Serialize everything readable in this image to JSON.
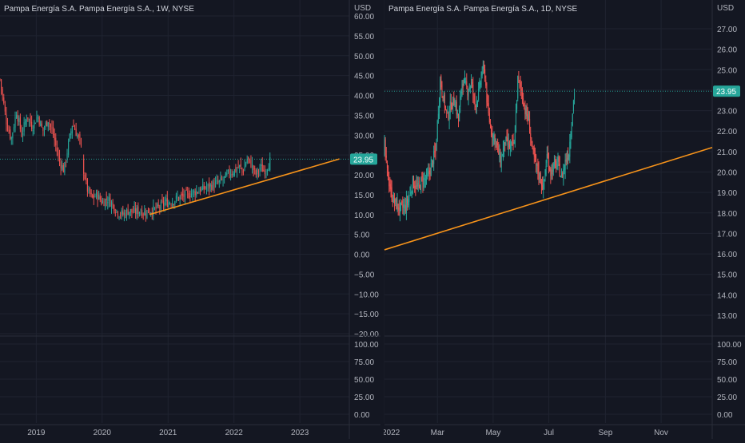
{
  "colors": {
    "background": "#141722",
    "grid": "#1f2330",
    "separator": "#2a2e39",
    "axis_text": "#b2b5be",
    "up": "#26a69a",
    "down": "#ef5350",
    "trendline": "#f7931a",
    "price_badge": "#26a69a",
    "price_badge_text": "#ffffff"
  },
  "chart_data": [
    {
      "type": "candlestick",
      "title": "Pampa Energía S.A. Pampa Energía S.A., 1W, NYSE",
      "currency": "USD",
      "last_price": "23.95",
      "y_ticks": [
        "60.00",
        "55.00",
        "50.00",
        "45.00",
        "40.00",
        "35.00",
        "30.00",
        "25.00",
        "20.00",
        "15.00",
        "10.00",
        "5.00",
        "0.00",
        "−5.00",
        "−10.00",
        "−15.00",
        "−20.00"
      ],
      "ylim": [
        -20,
        60
      ],
      "x_ticks": [
        {
          "label": "2019",
          "t": 2019.0
        },
        {
          "label": "2020",
          "t": 2020.0
        },
        {
          "label": "2021",
          "t": 2021.0
        },
        {
          "label": "2022",
          "t": 2022.0
        },
        {
          "label": "2023",
          "t": 2023.0
        }
      ],
      "x_range": [
        2018.45,
        2023.75
      ],
      "price_path": [
        [
          2018.45,
          44
        ],
        [
          2018.55,
          33
        ],
        [
          2018.62,
          29
        ],
        [
          2018.7,
          36
        ],
        [
          2018.78,
          30
        ],
        [
          2018.86,
          35
        ],
        [
          2018.94,
          32
        ],
        [
          2019.02,
          35
        ],
        [
          2019.1,
          31
        ],
        [
          2019.18,
          34
        ],
        [
          2019.26,
          30
        ],
        [
          2019.34,
          24
        ],
        [
          2019.42,
          21
        ],
        [
          2019.48,
          27
        ],
        [
          2019.55,
          33
        ],
        [
          2019.62,
          30
        ],
        [
          2019.67,
          28
        ],
        [
          2019.72,
          21
        ],
        [
          2019.78,
          16
        ],
        [
          2019.85,
          14
        ],
        [
          2019.92,
          15
        ],
        [
          2020.0,
          13
        ],
        [
          2020.08,
          14
        ],
        [
          2020.16,
          12.5
        ],
        [
          2020.24,
          10.5
        ],
        [
          2020.32,
          10
        ],
        [
          2020.4,
          11
        ],
        [
          2020.48,
          10.5
        ],
        [
          2020.56,
          11
        ],
        [
          2020.64,
          10.5
        ],
        [
          2020.72,
          11
        ],
        [
          2020.8,
          11.2
        ],
        [
          2020.88,
          12
        ],
        [
          2020.96,
          13
        ],
        [
          2021.05,
          13.2
        ],
        [
          2021.13,
          14
        ],
        [
          2021.21,
          14.5
        ],
        [
          2021.29,
          15
        ],
        [
          2021.37,
          15.5
        ],
        [
          2021.45,
          16
        ],
        [
          2021.53,
          16.5
        ],
        [
          2021.61,
          17
        ],
        [
          2021.69,
          17.5
        ],
        [
          2021.77,
          18
        ],
        [
          2021.85,
          19
        ],
        [
          2021.93,
          20.5
        ],
        [
          2022.0,
          21
        ],
        [
          2022.08,
          22
        ],
        [
          2022.14,
          21
        ],
        [
          2022.2,
          24
        ],
        [
          2022.27,
          22.5
        ],
        [
          2022.33,
          20
        ],
        [
          2022.4,
          22
        ],
        [
          2022.45,
          21
        ],
        [
          2022.5,
          22
        ],
        [
          2022.56,
          23.95
        ]
      ],
      "trendline": {
        "from": [
          2020.72,
          10
        ],
        "to": [
          2023.6,
          24
        ]
      }
    },
    {
      "type": "candlestick",
      "title": "Pampa Energía S.A. Pampa Energía S.A., 1D, NYSE",
      "currency": "USD",
      "last_price": "23.95",
      "y_ticks": [
        "27.00",
        "26.00",
        "25.00",
        "24.00",
        "23.00",
        "22.00",
        "21.00",
        "20.00",
        "19.00",
        "18.00",
        "17.00",
        "16.00",
        "15.00",
        "14.00",
        "13.00"
      ],
      "ylim": [
        12.5,
        27.6
      ],
      "x_ticks": [
        {
          "label": "2022",
          "t": 0
        },
        {
          "label": "Mar",
          "t": 59
        },
        {
          "label": "May",
          "t": 120
        },
        {
          "label": "Jul",
          "t": 181
        },
        {
          "label": "Sep",
          "t": 243
        },
        {
          "label": "Nov",
          "t": 304
        }
      ],
      "x_range": [
        1,
        360
      ],
      "price_path": [
        [
          1,
          21.2
        ],
        [
          4,
          20
        ],
        [
          8,
          19
        ],
        [
          12,
          18.5
        ],
        [
          18,
          18.2
        ],
        [
          24,
          18.3
        ],
        [
          28,
          18.8
        ],
        [
          32,
          19.5
        ],
        [
          38,
          19.2
        ],
        [
          42,
          19.6
        ],
        [
          48,
          19.7
        ],
        [
          52,
          20.3
        ],
        [
          57,
          21
        ],
        [
          62,
          24.5
        ],
        [
          66,
          23.5
        ],
        [
          70,
          22.7
        ],
        [
          74,
          23.3
        ],
        [
          78,
          23.5
        ],
        [
          82,
          22.5
        ],
        [
          86,
          24.5
        ],
        [
          92,
          24
        ],
        [
          96,
          24.4
        ],
        [
          100,
          23.3
        ],
        [
          104,
          23.8
        ],
        [
          108,
          25
        ],
        [
          111,
          24.8
        ],
        [
          114,
          23
        ],
        [
          118,
          22
        ],
        [
          123,
          21.5
        ],
        [
          128,
          20.5
        ],
        [
          133,
          21.5
        ],
        [
          138,
          21.2
        ],
        [
          143,
          21.3
        ],
        [
          147,
          24.5
        ],
        [
          151,
          24
        ],
        [
          155,
          23
        ],
        [
          159,
          22.5
        ],
        [
          163,
          21
        ],
        [
          167,
          20.3
        ],
        [
          171,
          19.8
        ],
        [
          175,
          19.2
        ],
        [
          179,
          20.8
        ],
        [
          183,
          20
        ],
        [
          187,
          20.3
        ],
        [
          191,
          20.4
        ],
        [
          195,
          19.7
        ],
        [
          199,
          20.5
        ],
        [
          203,
          21
        ],
        [
          206,
          22.5
        ],
        [
          209,
          23.95
        ]
      ],
      "trendline": {
        "from": [
          1,
          16.2
        ],
        "to": [
          360,
          21.2
        ]
      }
    }
  ]
}
